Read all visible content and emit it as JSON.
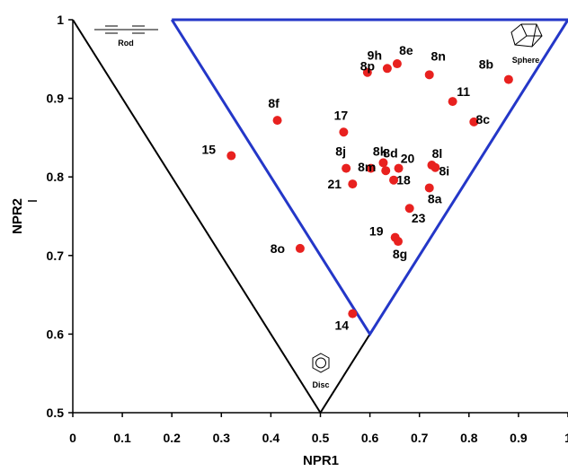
{
  "chart_data": {
    "type": "scatter",
    "title": "",
    "xlabel": "NPR1",
    "ylabel": "NPR2",
    "xlim": [
      0,
      1
    ],
    "ylim": [
      0.5,
      1
    ],
    "x_ticks": [
      "0",
      "0.1",
      "0.2",
      "0.3",
      "0.4",
      "0.5",
      "0.6",
      "0.7",
      "0.8",
      "0.9",
      "1"
    ],
    "y_ticks": [
      "0.5",
      "0.6",
      "0.7",
      "0.8",
      "0.9",
      "1"
    ],
    "grid": false,
    "point_color": "#e8211f",
    "outer_triangle": {
      "color": "#000000",
      "vertices": [
        [
          0,
          1
        ],
        [
          0.5,
          0.5
        ],
        [
          1,
          1
        ]
      ]
    },
    "inner_region": {
      "color": "#2437c8",
      "vertices": [
        [
          0.2,
          1
        ],
        [
          0.6,
          0.6
        ],
        [
          1,
          1
        ]
      ]
    },
    "corner_labels": {
      "rod": "Rod",
      "sphere": "Sphere",
      "disc": "Disc"
    },
    "points": [
      {
        "label": "9h",
        "x": 0.595,
        "y": 0.933
      },
      {
        "label": "8e",
        "x": 0.655,
        "y": 0.944
      },
      {
        "label": "8n",
        "x": 0.72,
        "y": 0.93
      },
      {
        "label": "8p",
        "x": 0.635,
        "y": 0.938
      },
      {
        "label": "8b",
        "x": 0.88,
        "y": 0.924
      },
      {
        "label": "11",
        "x": 0.767,
        "y": 0.896
      },
      {
        "label": "8c",
        "x": 0.81,
        "y": 0.87
      },
      {
        "label": "8f",
        "x": 0.413,
        "y": 0.872
      },
      {
        "label": "17",
        "x": 0.547,
        "y": 0.857
      },
      {
        "label": "15",
        "x": 0.32,
        "y": 0.827
      },
      {
        "label": "8j",
        "x": 0.552,
        "y": 0.811
      },
      {
        "label": "8k",
        "x": 0.602,
        "y": 0.811
      },
      {
        "label": "8d",
        "x": 0.627,
        "y": 0.818
      },
      {
        "label": "20",
        "x": 0.658,
        "y": 0.811
      },
      {
        "label": "8l",
        "x": 0.725,
        "y": 0.815
      },
      {
        "label": "8i",
        "x": 0.732,
        "y": 0.812
      },
      {
        "label": "21",
        "x": 0.565,
        "y": 0.791
      },
      {
        "label": "8m",
        "x": 0.632,
        "y": 0.808
      },
      {
        "label": "18",
        "x": 0.648,
        "y": 0.796
      },
      {
        "label": "8a",
        "x": 0.72,
        "y": 0.786
      },
      {
        "label": "23",
        "x": 0.68,
        "y": 0.76
      },
      {
        "label": "19",
        "x": 0.651,
        "y": 0.723
      },
      {
        "label": "8g",
        "x": 0.657,
        "y": 0.718
      },
      {
        "label": "8o",
        "x": 0.459,
        "y": 0.709
      },
      {
        "label": "14",
        "x": 0.565,
        "y": 0.626
      }
    ]
  }
}
